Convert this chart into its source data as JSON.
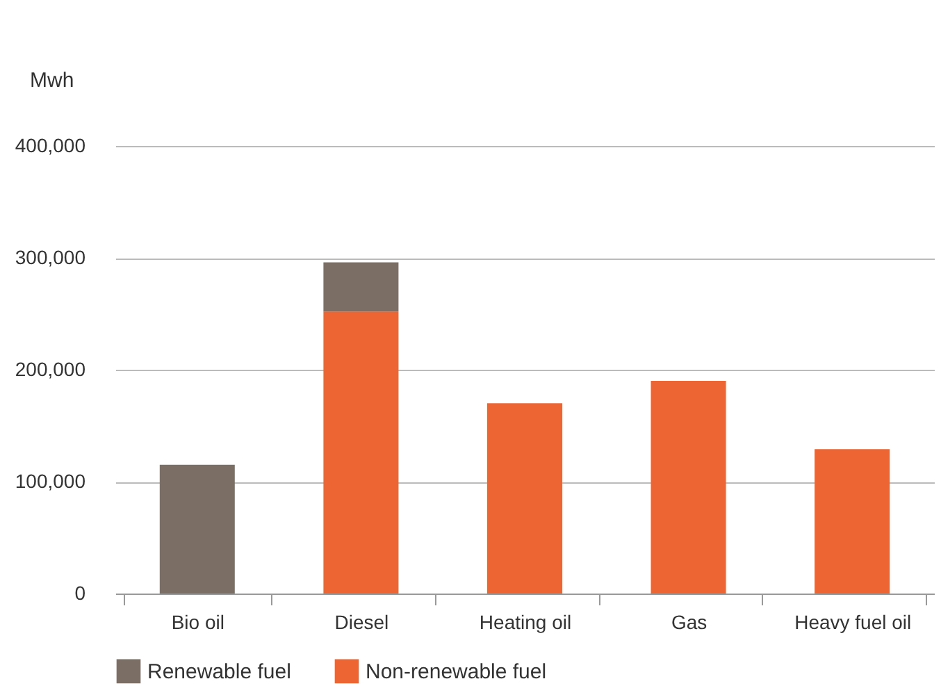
{
  "chart_data": {
    "type": "bar",
    "stacked": true,
    "ylabel": "Mwh",
    "categories": [
      "Bio oil",
      "Diesel",
      "Heating oil",
      "Gas",
      "Heavy fuel oil"
    ],
    "series": [
      {
        "name": "Non-renewable fuel",
        "color": "#ec6532",
        "values": [
          null,
          252000,
          170000,
          190000,
          129000
        ]
      },
      {
        "name": "Renewable fuel",
        "color": "#7b6f65",
        "values": [
          115000,
          44000,
          null,
          null,
          null
        ]
      }
    ],
    "ylim": [
      0,
      400000
    ],
    "yticks": [
      0,
      {
        "value": 100000,
        "label": "100,000"
      },
      {
        "value": 200000,
        "label": "200,000"
      },
      {
        "value": 300000,
        "label": "300,000"
      },
      {
        "value": 400000,
        "label": "400,000"
      }
    ],
    "grid": "y",
    "legend": "bottom"
  }
}
